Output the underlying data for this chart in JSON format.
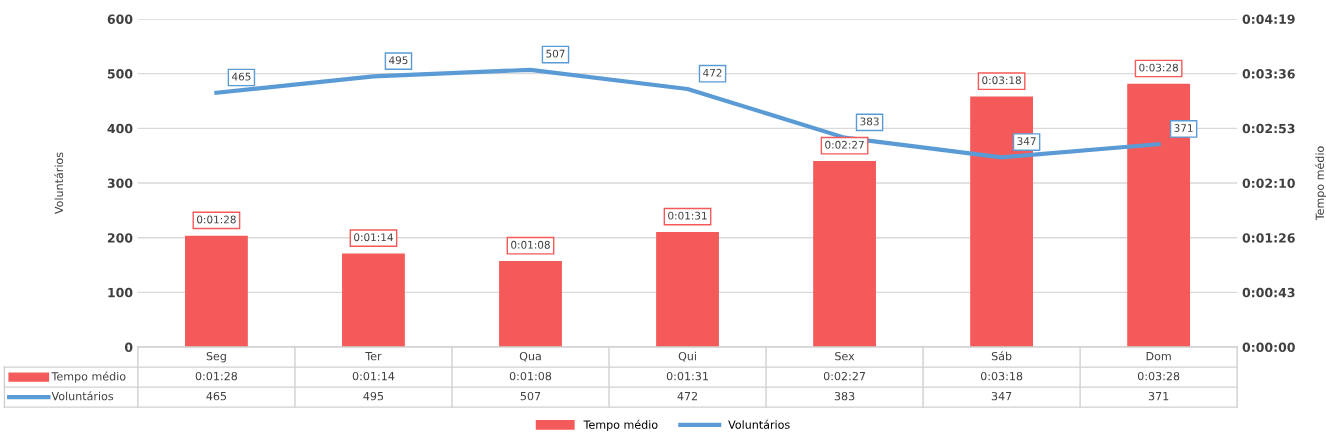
{
  "chart_data": {
    "type": "bar",
    "categories": [
      "Seg",
      "Ter",
      "Qua",
      "Qui",
      "Sex",
      "Sáb",
      "Dom"
    ],
    "series": [
      {
        "name": "Tempo médio",
        "axis": "y2",
        "color": "#f45a5a",
        "values": [
          88,
          74,
          68,
          91,
          147,
          198,
          208
        ],
        "value_labels": [
          "0:01:28",
          "0:01:14",
          "0:01:08",
          "0:01:31",
          "0:02:27",
          "0:03:18",
          "0:03:28"
        ]
      },
      {
        "name": "Voluntários",
        "type": "line",
        "color": "#5b9bd5",
        "values": [
          465,
          495,
          507,
          472,
          383,
          347,
          371
        ],
        "value_labels": [
          "465",
          "495",
          "507",
          "472",
          "383",
          "347",
          "371"
        ]
      }
    ],
    "ylabel": "Voluntários",
    "y2label": "Tempo médio",
    "ylim": [
      0,
      600
    ],
    "yticks": [
      0,
      100,
      200,
      300,
      400,
      500,
      600
    ],
    "y2lim": [
      0,
      259.2
    ],
    "y2ticks": [
      {
        "value": 0,
        "label": "0:00:00"
      },
      {
        "value": 43.2,
        "label": "0:00:43"
      },
      {
        "value": 86.4,
        "label": "0:01:26"
      },
      {
        "value": 129.6,
        "label": "0:02:10"
      },
      {
        "value": 172.8,
        "label": "0:02:53"
      },
      {
        "value": 216,
        "label": "0:03:36"
      },
      {
        "value": 259.2,
        "label": "0:04:19"
      }
    ],
    "grid": "y",
    "legend": "bottom",
    "data_labels": true,
    "marker": "none",
    "line_style": "solid"
  }
}
